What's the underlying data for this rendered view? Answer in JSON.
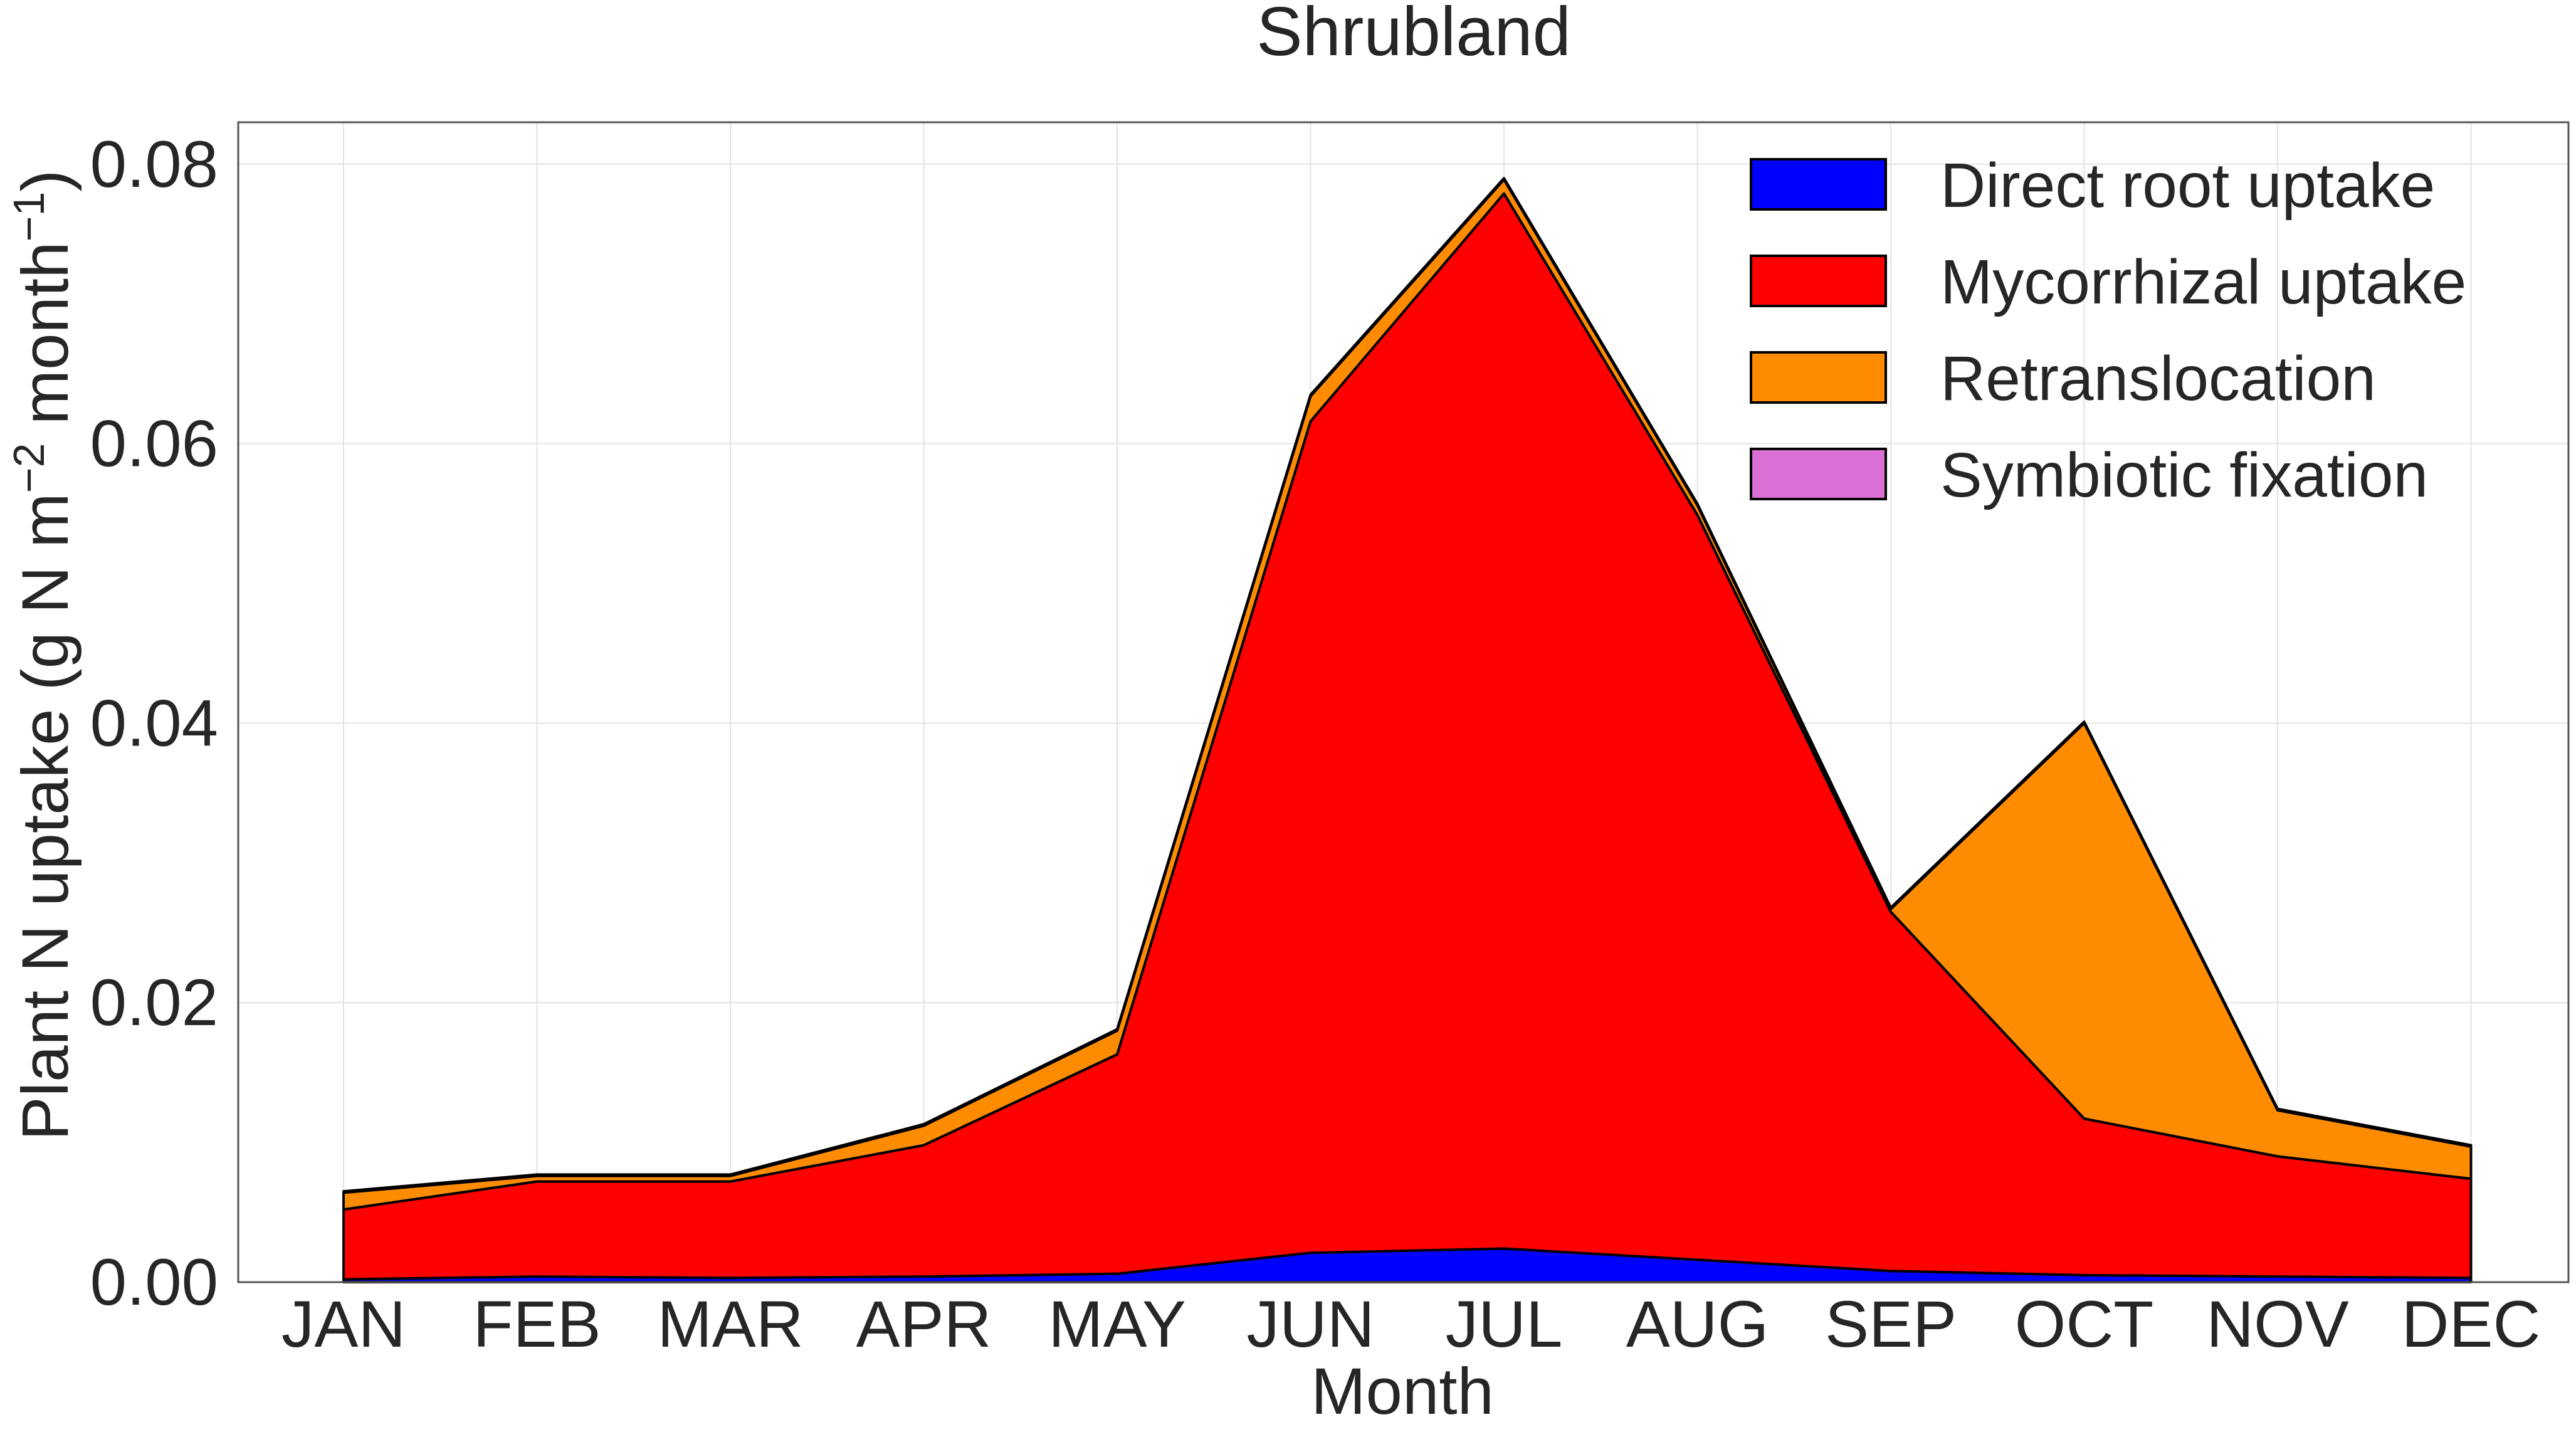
{
  "chart_data": {
    "type": "area",
    "stacked": true,
    "title": "Shrubland",
    "xlabel": "Month",
    "ylabel": "Plant N uptake (g N m",
    "ylabel_sup1": "−2",
    "ylabel_mid": " month",
    "ylabel_sup2": "−1",
    "ylabel_end": ")",
    "categories": [
      "JAN",
      "FEB",
      "MAR",
      "APR",
      "MAY",
      "JUN",
      "JUL",
      "AUG",
      "SEP",
      "OCT",
      "NOV",
      "DEC"
    ],
    "ylim": [
      0,
      0.083
    ],
    "yticks": [
      "0.00",
      "0.02",
      "0.04",
      "0.06",
      "0.08"
    ],
    "ytick_values": [
      0,
      0.02,
      0.04,
      0.06,
      0.08
    ],
    "grid": true,
    "legend_position": "top-right",
    "series": [
      {
        "name": "Direct root uptake",
        "color": "#0000ff",
        "values": [
          0.0002,
          0.0004,
          0.0003,
          0.0004,
          0.0006,
          0.0021,
          0.0024,
          0.0016,
          0.0008,
          0.0005,
          0.0004,
          0.0003
        ]
      },
      {
        "name": "Mycorrhizal uptake",
        "color": "#ff0000",
        "values": [
          0.005,
          0.0068,
          0.0069,
          0.0094,
          0.0157,
          0.0595,
          0.0755,
          0.0533,
          0.0257,
          0.0112,
          0.0086,
          0.0071
        ]
      },
      {
        "name": "Retranslocation",
        "color": "#ff8c00",
        "values": [
          0.0012,
          0.0004,
          0.0004,
          0.0014,
          0.0017,
          0.0018,
          0.001,
          0.0007,
          0.0002,
          0.0283,
          0.0033,
          0.0023
        ]
      },
      {
        "name": "Symbiotic fixation",
        "color": "#da70d6",
        "values": [
          0.0001,
          0.0001,
          0.0001,
          0.0001,
          0.0001,
          0.0001,
          0.0001,
          0.0001,
          0.0001,
          0.0001,
          0.0001,
          0.0001
        ]
      }
    ]
  }
}
